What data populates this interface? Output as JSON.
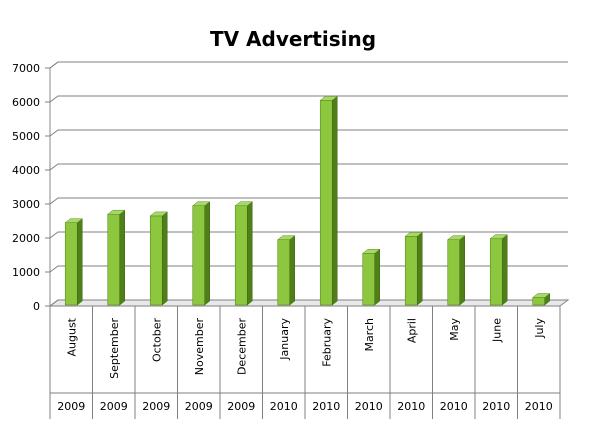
{
  "chart_data": {
    "type": "bar",
    "title": "TV Advertising",
    "xlabel": "",
    "ylabel": "",
    "ylim": [
      0,
      7000
    ],
    "yticks": [
      0,
      1000,
      2000,
      3000,
      4000,
      5000,
      6000,
      7000
    ],
    "grid": true,
    "legend": "none",
    "bar_color": "#8dc63f",
    "categories": [
      "August",
      "September",
      "October",
      "November",
      "December",
      "January",
      "February",
      "March",
      "April",
      "May",
      "June",
      "July"
    ],
    "years": [
      "2009",
      "2009",
      "2009",
      "2009",
      "2009",
      "2010",
      "2010",
      "2010",
      "2010",
      "2010",
      "2010",
      "2010"
    ],
    "values": [
      2450,
      2700,
      2650,
      2950,
      2950,
      1950,
      6050,
      1550,
      2050,
      1950,
      1980,
      250
    ]
  }
}
